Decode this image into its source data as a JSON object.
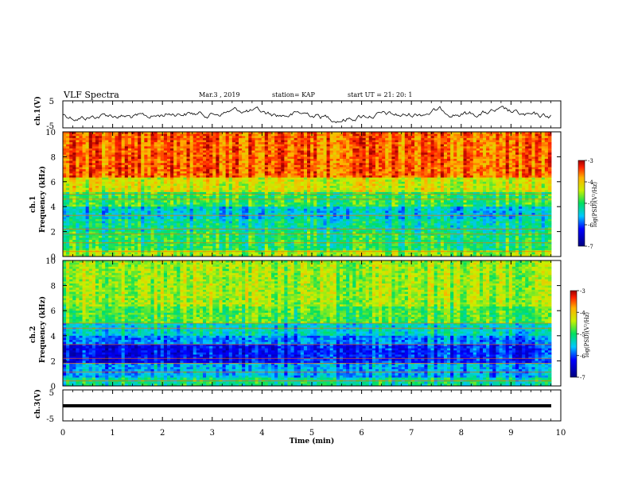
{
  "header": {
    "title": "VLF Spectra",
    "date": "Mar.3  , 2019",
    "station": "station= KAP",
    "start": "start  UT  =   21: 20: 1"
  },
  "chart_data": [
    {
      "type": "line",
      "ylabel": "ch.1(V)",
      "ylim": [
        -5,
        5
      ],
      "yticks": [
        "5",
        "-5"
      ],
      "note": "noisy waveform trace oscillating around 0 V"
    },
    {
      "type": "heatmap",
      "ylabel": "ch.1\nFrequency  (kHz)",
      "ylim": [
        0,
        10
      ],
      "yticks": [
        "0",
        "2",
        "4",
        "6",
        "8",
        "10"
      ],
      "xlim": [
        0,
        10
      ],
      "colorbar": {
        "label": "log(PSD)(V²/Hz)",
        "range": [
          -7,
          -3
        ],
        "ticks": [
          "-3",
          "-4",
          "-5",
          "-6",
          "-7"
        ]
      }
    },
    {
      "type": "heatmap",
      "ylabel": "ch.2\nFrequency  (kHz)",
      "ylim": [
        0,
        10
      ],
      "yticks": [
        "0",
        "2",
        "4",
        "6",
        "8",
        "10"
      ],
      "xlim": [
        0,
        10
      ],
      "colorbar": {
        "label": "log(PSD)(V²/Hz)",
        "range": [
          -7,
          -3
        ],
        "ticks": [
          "-3",
          "-4",
          "-5",
          "-6",
          "-7"
        ]
      }
    },
    {
      "type": "line",
      "ylabel": "ch.3(V)",
      "ylim": [
        -5,
        5
      ],
      "yticks": [
        "5",
        "-5"
      ],
      "note": "flat line at about 0 V"
    }
  ],
  "xaxis": {
    "label": "Time  (min)",
    "range": [
      0,
      10
    ],
    "ticks": [
      "0",
      "1",
      "2",
      "3",
      "4",
      "5",
      "6",
      "7",
      "8",
      "9",
      "10"
    ]
  }
}
